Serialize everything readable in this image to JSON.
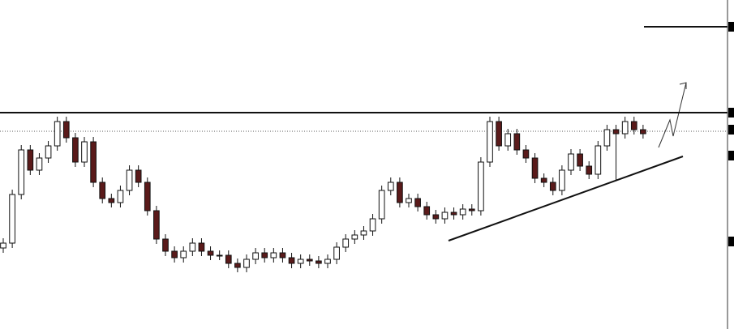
{
  "chart_data": {
    "type": "candlestick",
    "ylim": [
      0,
      406
    ],
    "open": [
      100,
      106,
      166,
      221,
      196,
      211,
      226,
      256,
      236,
      206,
      231,
      181,
      161,
      156,
      171,
      196,
      181,
      146,
      111,
      96,
      88,
      96,
      106,
      96,
      91,
      91,
      81,
      76,
      86,
      94,
      88,
      94,
      88,
      81,
      86,
      84,
      81,
      86,
      101,
      111,
      116,
      121,
      136,
      171,
      181,
      156,
      161,
      151,
      141,
      136,
      144,
      141,
      148,
      146,
      206,
      256,
      226,
      241,
      221,
      211,
      186,
      181,
      171,
      196,
      216,
      201,
      191,
      226,
      246,
      241,
      256,
      246
    ],
    "high": [
      112,
      172,
      227,
      227,
      217,
      232,
      262,
      262,
      242,
      237,
      237,
      187,
      167,
      177,
      202,
      202,
      187,
      152,
      117,
      102,
      102,
      112,
      112,
      102,
      97,
      97,
      87,
      92,
      100,
      100,
      100,
      100,
      94,
      92,
      92,
      90,
      92,
      107,
      117,
      122,
      127,
      142,
      177,
      187,
      187,
      167,
      167,
      157,
      147,
      150,
      150,
      154,
      154,
      212,
      262,
      262,
      247,
      247,
      227,
      217,
      192,
      187,
      202,
      222,
      222,
      207,
      232,
      252,
      252,
      262,
      262,
      252
    ],
    "low": [
      94,
      100,
      160,
      190,
      190,
      205,
      220,
      230,
      200,
      200,
      175,
      155,
      150,
      150,
      165,
      175,
      140,
      105,
      90,
      82,
      82,
      90,
      90,
      85,
      85,
      75,
      70,
      70,
      80,
      82,
      82,
      82,
      75,
      75,
      78,
      75,
      75,
      80,
      95,
      105,
      110,
      115,
      130,
      165,
      150,
      150,
      145,
      135,
      130,
      130,
      135,
      135,
      140,
      140,
      200,
      220,
      220,
      215,
      205,
      180,
      175,
      165,
      165,
      190,
      195,
      185,
      185,
      220,
      184,
      235,
      240,
      235
    ],
    "close": [
      106,
      166,
      221,
      196,
      211,
      226,
      256,
      236,
      206,
      231,
      181,
      161,
      156,
      171,
      196,
      181,
      146,
      111,
      96,
      88,
      96,
      106,
      96,
      91,
      91,
      81,
      76,
      86,
      94,
      88,
      94,
      88,
      81,
      86,
      84,
      81,
      86,
      101,
      111,
      116,
      121,
      136,
      171,
      181,
      156,
      161,
      151,
      141,
      136,
      144,
      141,
      148,
      146,
      206,
      256,
      226,
      241,
      221,
      211,
      186,
      181,
      171,
      196,
      216,
      201,
      191,
      226,
      246,
      241,
      256,
      246,
      241
    ],
    "up_color": "#ffffff",
    "down_color": "#5a1a1a",
    "resistance": 267,
    "support_dotted": 244,
    "upper_level": 373,
    "axis_markers": [
      373,
      267,
      246,
      214,
      108
    ]
  }
}
